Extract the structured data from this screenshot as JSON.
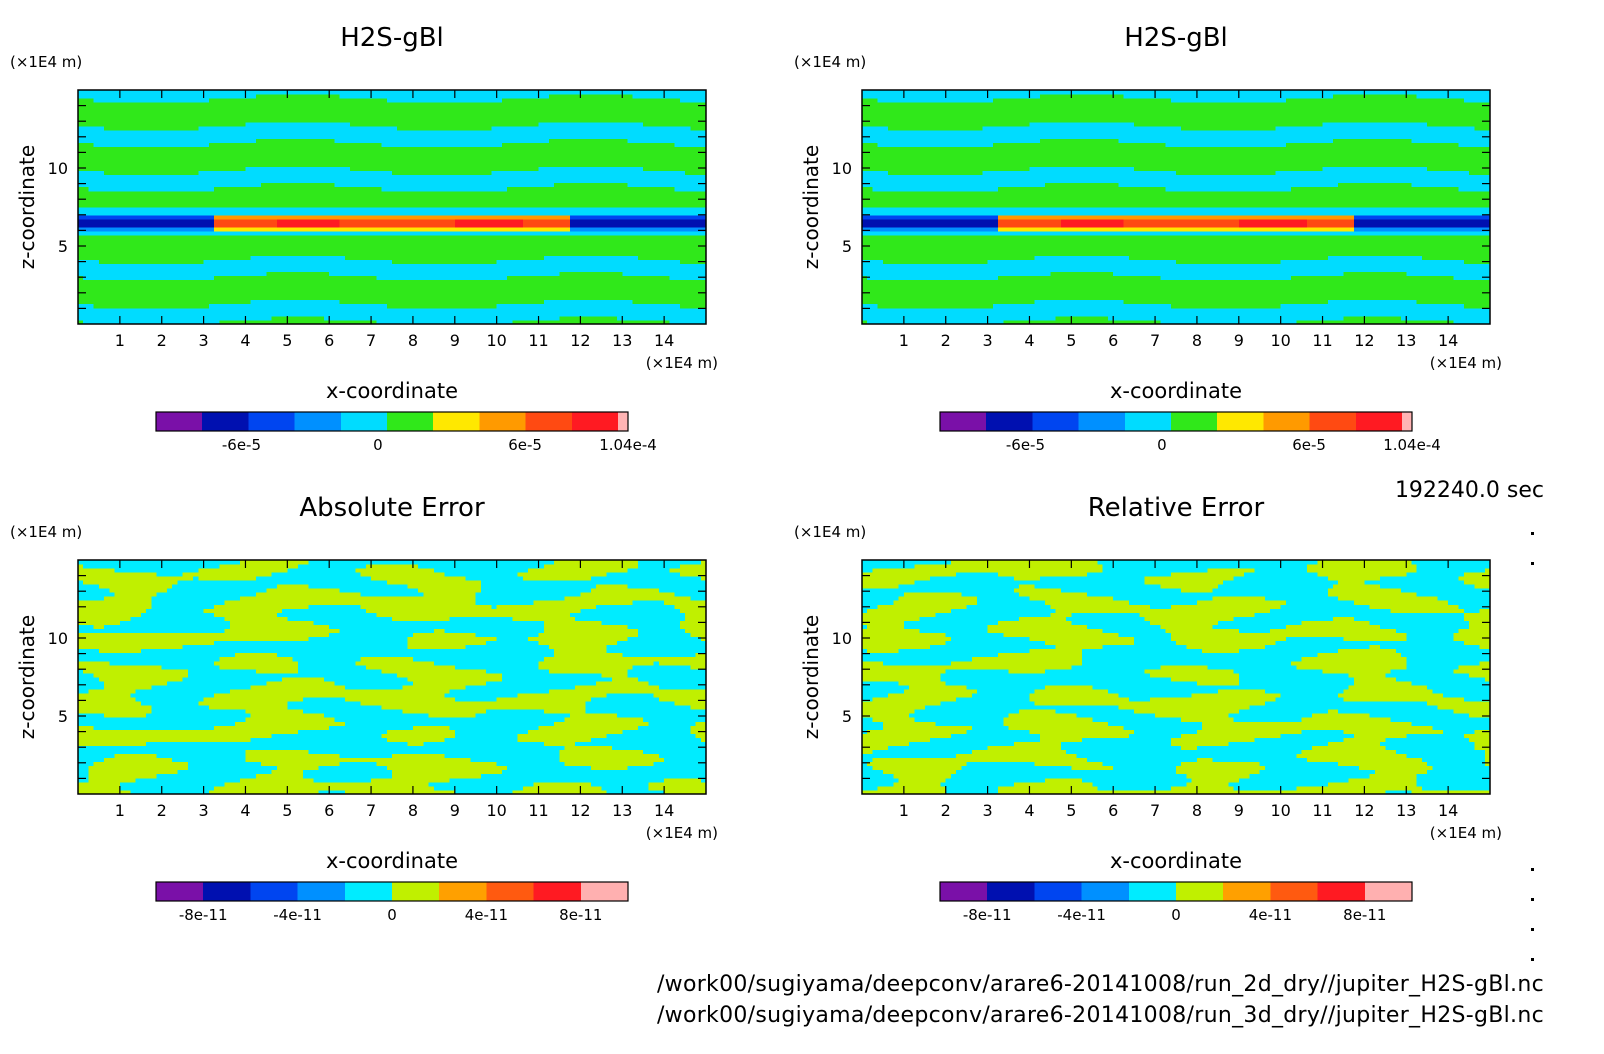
{
  "time_label": "192240.0 sec",
  "files": [
    "/work00/sugiyama/deepconv/arare6-20141008/run_2d_dry//jupiter_H2S-gBl.nc",
    "/work00/sugiyama/deepconv/arare6-20141008/run_3d_dry//jupiter_H2S-gBl.nc"
  ],
  "chart_data": [
    {
      "type": "heatmap",
      "title": "H2S-gBl",
      "xlabel": "x-coordinate",
      "ylabel": "z-coordinate",
      "x_unit": "(×1E4 m)",
      "y_unit": "(×1E4 m)",
      "xlim": [
        0,
        15
      ],
      "ylim": [
        0,
        15
      ],
      "x_ticks": [
        1,
        2,
        3,
        4,
        5,
        6,
        7,
        8,
        9,
        10,
        11,
        12,
        13,
        14
      ],
      "y_ticks": [
        5,
        10
      ],
      "colorbar": {
        "colors": [
          "#7a10a8",
          "#0010b0",
          "#0045f0",
          "#0090ff",
          "#00dcff",
          "#30e81a",
          "#ffe800",
          "#ff9a00",
          "#ff4a12",
          "#ff1a22",
          "#ffb4b4"
        ],
        "tick_labels": [
          "-6e-5",
          "0",
          "6e-5",
          "1.04e-4"
        ],
        "tick_positions": [
          0.181,
          0.47,
          0.782,
          1.0
        ]
      }
    },
    {
      "type": "heatmap",
      "title": "H2S-gBl",
      "xlabel": "x-coordinate",
      "ylabel": "z-coordinate",
      "x_unit": "(×1E4 m)",
      "y_unit": "(×1E4 m)",
      "xlim": [
        0,
        15
      ],
      "ylim": [
        0,
        15
      ],
      "x_ticks": [
        1,
        2,
        3,
        4,
        5,
        6,
        7,
        8,
        9,
        10,
        11,
        12,
        13,
        14
      ],
      "y_ticks": [
        5,
        10
      ],
      "colorbar": {
        "colors": [
          "#7a10a8",
          "#0010b0",
          "#0045f0",
          "#0090ff",
          "#00dcff",
          "#30e81a",
          "#ffe800",
          "#ff9a00",
          "#ff4a12",
          "#ff1a22",
          "#ffb4b4"
        ],
        "tick_labels": [
          "-6e-5",
          "0",
          "6e-5",
          "1.04e-4"
        ],
        "tick_positions": [
          0.181,
          0.47,
          0.782,
          1.0
        ]
      }
    },
    {
      "type": "heatmap",
      "title": "Absolute Error",
      "xlabel": "x-coordinate",
      "ylabel": "z-coordinate",
      "x_unit": "(×1E4 m)",
      "y_unit": "(×1E4 m)",
      "xlim": [
        0,
        15
      ],
      "ylim": [
        0,
        15
      ],
      "x_ticks": [
        1,
        2,
        3,
        4,
        5,
        6,
        7,
        8,
        9,
        10,
        11,
        12,
        13,
        14
      ],
      "y_ticks": [
        5,
        10
      ],
      "colorbar": {
        "colors": [
          "#7a10a8",
          "#0010b0",
          "#0045f0",
          "#0090ff",
          "#00ecff",
          "#c0f000",
          "#ffa000",
          "#ff5a10",
          "#ff1a22",
          "#ffb0b0"
        ],
        "tick_labels": [
          "-8e-11",
          "-4e-11",
          "0",
          "4e-11",
          "8e-11"
        ],
        "tick_positions": [
          0.1,
          0.3,
          0.5,
          0.7,
          0.9
        ]
      }
    },
    {
      "type": "heatmap",
      "title": "Relative Error",
      "xlabel": "x-coordinate",
      "ylabel": "z-coordinate",
      "x_unit": "(×1E4 m)",
      "y_unit": "(×1E4 m)",
      "xlim": [
        0,
        15
      ],
      "ylim": [
        0,
        15
      ],
      "x_ticks": [
        1,
        2,
        3,
        4,
        5,
        6,
        7,
        8,
        9,
        10,
        11,
        12,
        13,
        14
      ],
      "y_ticks": [
        5,
        10
      ],
      "colorbar": {
        "colors": [
          "#7a10a8",
          "#0010b0",
          "#0045f0",
          "#0090ff",
          "#00ecff",
          "#c0f000",
          "#ffa000",
          "#ff5a10",
          "#ff1a22",
          "#ffb0b0"
        ],
        "tick_labels": [
          "-8e-11",
          "-4e-11",
          "0",
          "4e-11",
          "8e-11"
        ],
        "tick_positions": [
          0.1,
          0.3,
          0.5,
          0.7,
          0.9
        ]
      }
    }
  ]
}
